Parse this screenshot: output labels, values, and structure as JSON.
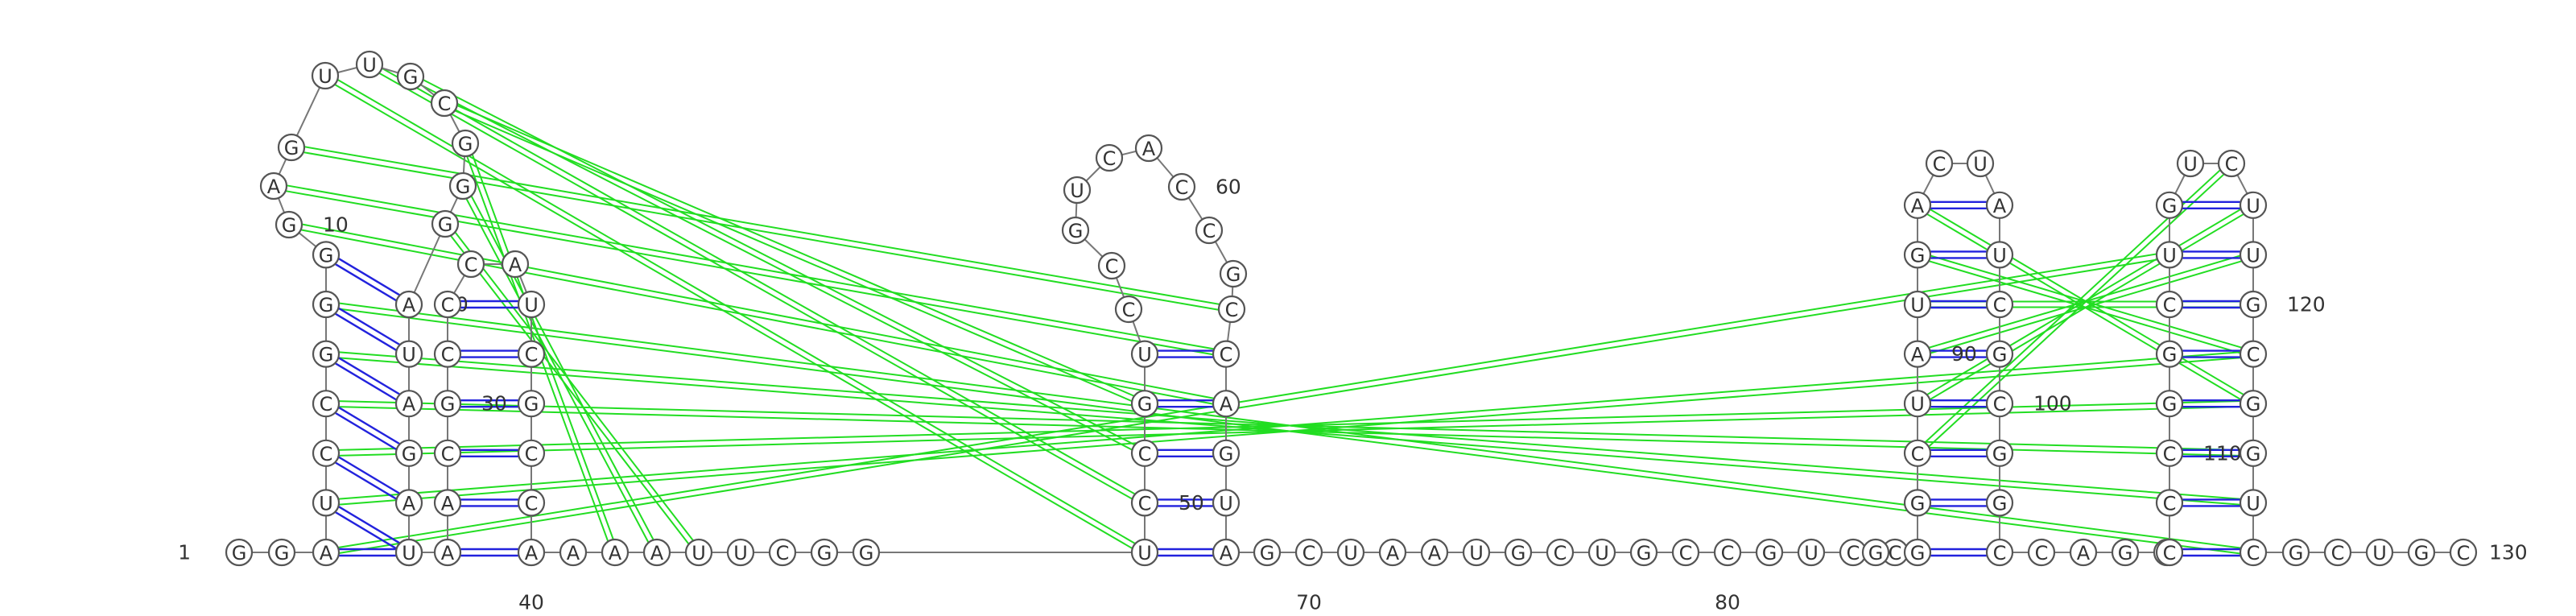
{
  "colors": {
    "pseudoknot": "#22dd22",
    "base_pair": "#2222dd",
    "backbone": "#777777",
    "outline": "#555555",
    "text": "#333333"
  },
  "sequence": "GGAUCCGGGGAGUUGCGGGAUAGACUAACGCCCAUCGCCAAAAUUCGGUCCGUCCGUCACCGCCAGUAGCUAAUGCUGCCGUCCGGGCUAUGACUAUCGCGGCCAGGCCCGGCUGUCUUGCGGUCGCUGC",
  "numbers": [
    {
      "label": "1",
      "nt": 1
    },
    {
      "label": "10",
      "nt": 10
    },
    {
      "label": "20",
      "nt": 20
    },
    {
      "label": "30",
      "nt": 30
    },
    {
      "label": "40",
      "nt": 40
    },
    {
      "label": "50",
      "nt": 50
    },
    {
      "label": "60",
      "nt": 60
    },
    {
      "label": "70",
      "nt": 70
    },
    {
      "label": "80",
      "nt": 80
    },
    {
      "label": "90",
      "nt": 90
    },
    {
      "label": "100",
      "nt": 100
    },
    {
      "label": "110",
      "nt": 110
    },
    {
      "label": "120",
      "nt": 120
    },
    {
      "label": "130",
      "nt": 130
    }
  ]
}
